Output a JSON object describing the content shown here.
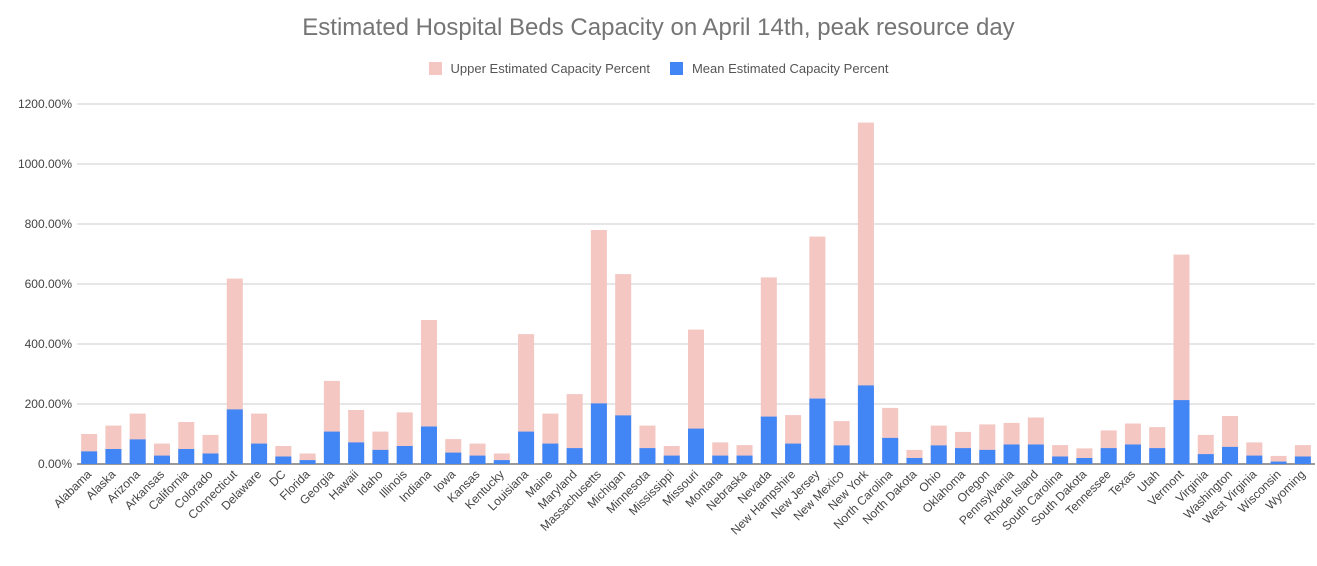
{
  "chart_data": {
    "type": "bar",
    "stacked": false,
    "title": "Estimated Hospital Beds Capacity on April 14th, peak resource day",
    "xlabel": "",
    "ylabel": "",
    "ylim": [
      0,
      1200
    ],
    "yticks": [
      "0.00%",
      "200.00%",
      "400.00%",
      "600.00%",
      "800.00%",
      "1000.00%",
      "1200.00%"
    ],
    "grid": true,
    "legend_position": "top",
    "categories": [
      "Alabama",
      "Alaska",
      "Arizona",
      "Arkansas",
      "California",
      "Colorado",
      "Connecticut",
      "Delaware",
      "DC",
      "Florida",
      "Georgia",
      "Hawaii",
      "Idaho",
      "Illinois",
      "Indiana",
      "Iowa",
      "Kansas",
      "Kentucky",
      "Louisiana",
      "Maine",
      "Maryland",
      "Massachusetts",
      "Michigan",
      "Minnesota",
      "Mississippi",
      "Missouri",
      "Montana",
      "Nebraska",
      "Nevada",
      "New Hampshire",
      "New Jersey",
      "New Mexico",
      "New York",
      "North Carolina",
      "North Dakota",
      "Ohio",
      "Oklahoma",
      "Oregon",
      "Pennsylvania",
      "Rhode Island",
      "South Carolina",
      "South Dakota",
      "Tennessee",
      "Texas",
      "Utah",
      "Vermont",
      "Virginia",
      "Washington",
      "West Virginia",
      "Wisconsin",
      "Wyoming"
    ],
    "series": [
      {
        "name": "Upper Estimated Capacity Percent",
        "color": "#f4c7c3",
        "values": [
          100,
          128,
          168,
          68,
          140,
          97,
          618,
          168,
          60,
          35,
          277,
          180,
          108,
          172,
          480,
          83,
          68,
          35,
          433,
          168,
          233,
          780,
          633,
          128,
          60,
          448,
          72,
          63,
          622,
          163,
          758,
          143,
          1138,
          187,
          47,
          128,
          107,
          132,
          137,
          155,
          63,
          52,
          112,
          135,
          123,
          698,
          97,
          160,
          72,
          27,
          63
        ]
      },
      {
        "name": "Mean Estimated Capacity Percent",
        "color": "#4285f4",
        "values": [
          42,
          50,
          82,
          28,
          50,
          35,
          182,
          68,
          25,
          13,
          108,
          72,
          47,
          60,
          125,
          38,
          28,
          13,
          108,
          68,
          53,
          202,
          162,
          53,
          28,
          118,
          28,
          28,
          158,
          68,
          218,
          62,
          262,
          87,
          20,
          62,
          53,
          47,
          65,
          65,
          25,
          20,
          53,
          65,
          53,
          213,
          33,
          57,
          28,
          8,
          25
        ]
      }
    ]
  }
}
